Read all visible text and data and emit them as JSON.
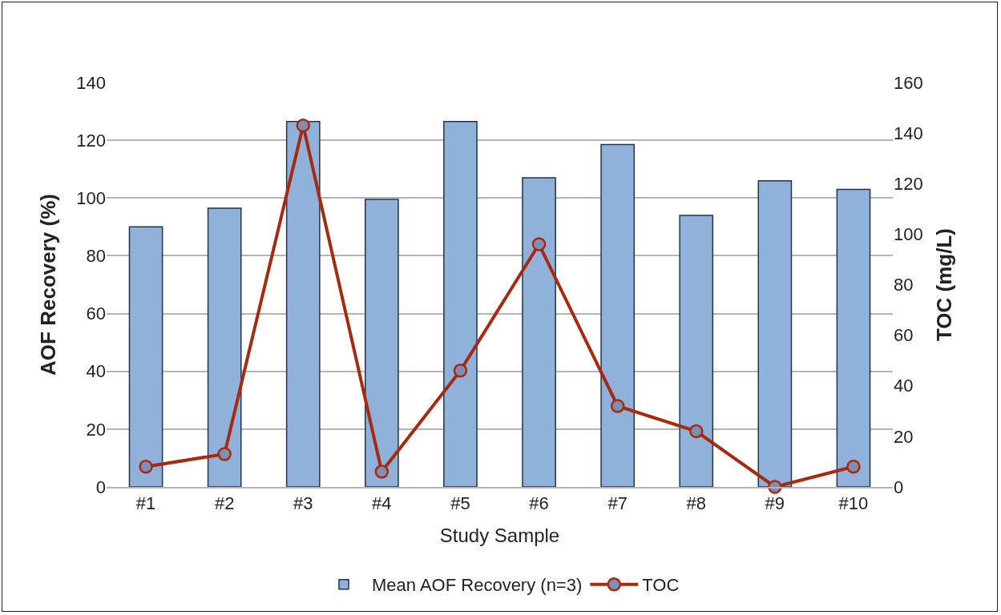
{
  "chart_data": {
    "type": "bar",
    "xlabel": "Study Sample",
    "ylabel": "AOF Recovery (%)",
    "y2label": "TOC (mg/L)",
    "categories": [
      "#1",
      "#2",
      "#3",
      "#4",
      "#5",
      "#6",
      "#7",
      "#8",
      "#9",
      "#10"
    ],
    "series": [
      {
        "name": "Mean AOF Recovery (n=3)",
        "color": "#8fb1da",
        "values": [
          90,
          96.5,
          126.5,
          99.5,
          126.5,
          107,
          118.5,
          94,
          106,
          103
        ]
      },
      {
        "name": "TOC",
        "type": "line",
        "axis": "y2",
        "color": "#a52a10",
        "marker": "circle",
        "line_style": "solid",
        "values": [
          8,
          13,
          143,
          6,
          46,
          96,
          32,
          22,
          0,
          8
        ]
      }
    ],
    "ylim": [
      0,
      140
    ],
    "yticks": [
      0,
      20,
      40,
      60,
      80,
      100,
      120,
      140
    ],
    "y2lim": [
      0,
      160
    ],
    "y2ticks": [
      0,
      20,
      40,
      60,
      80,
      100,
      120,
      140,
      160
    ],
    "grid": "y",
    "legend": "bottom"
  }
}
